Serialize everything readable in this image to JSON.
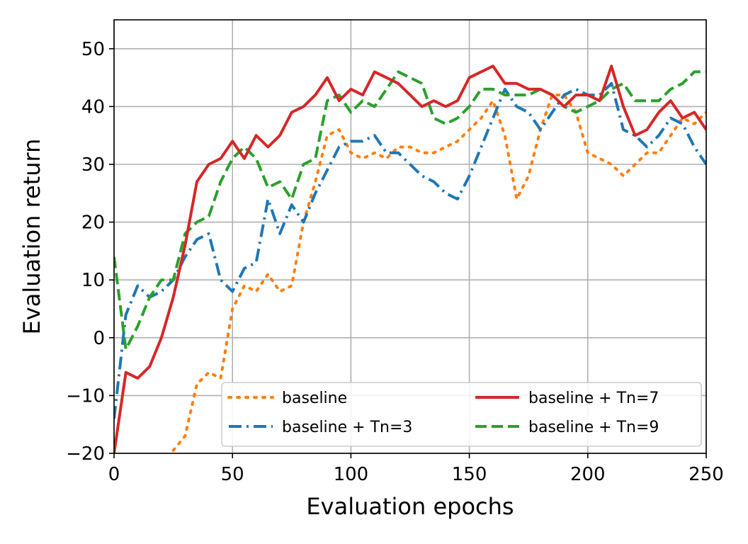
{
  "chart_data": {
    "type": "line",
    "title": "",
    "xlabel": "Evaluation epochs",
    "ylabel": "Evaluation return",
    "xlim": [
      0,
      250
    ],
    "ylim": [
      -20,
      55
    ],
    "grid": true,
    "legend_position": "lower-right",
    "xticks": [
      0,
      50,
      100,
      150,
      200,
      250
    ],
    "xtick_labels": [
      "0",
      "50",
      "100",
      "150",
      "200",
      "250"
    ],
    "yticks": [
      -20,
      -10,
      0,
      10,
      20,
      30,
      40,
      50
    ],
    "ytick_labels": [
      "−20",
      "−10",
      "0",
      "10",
      "20",
      "30",
      "40",
      "50"
    ],
    "x": [
      0,
      5,
      10,
      15,
      20,
      25,
      30,
      35,
      40,
      45,
      50,
      55,
      60,
      65,
      70,
      75,
      80,
      85,
      90,
      95,
      100,
      105,
      110,
      115,
      120,
      125,
      130,
      135,
      140,
      145,
      150,
      155,
      160,
      165,
      170,
      175,
      180,
      185,
      190,
      195,
      200,
      205,
      210,
      215,
      220,
      225,
      230,
      235,
      240,
      245,
      250
    ],
    "series": [
      {
        "name": "baseline",
        "color": "#ff7f0e",
        "style": "dotted",
        "values": [
          null,
          null,
          null,
          null,
          null,
          -19.5,
          -17,
          -8,
          -6,
          -7,
          5,
          9,
          8,
          11,
          8,
          9,
          20,
          27,
          35,
          36,
          32,
          31,
          32,
          31,
          33,
          33,
          32,
          32,
          33,
          34,
          36,
          38,
          41,
          35,
          24,
          28,
          36,
          42,
          42,
          39,
          32,
          31,
          30,
          28,
          30,
          32,
          32,
          35,
          38,
          37,
          39
        ]
      },
      {
        "name": "baseline + Tn=3",
        "color": "#1f77b4",
        "style": "dashdot",
        "values": [
          -14,
          4,
          9,
          7,
          8,
          10,
          14,
          17,
          18,
          10,
          8,
          12,
          13,
          24,
          18,
          23,
          20,
          25,
          29,
          33,
          34,
          34,
          35,
          32,
          32,
          30,
          28,
          27,
          25,
          24,
          28,
          33,
          38,
          43,
          40,
          39,
          36,
          39,
          42,
          43,
          42,
          42,
          44,
          36,
          35,
          33,
          35,
          38,
          37,
          33,
          30
        ]
      },
      {
        "name": "baseline + Tn=7",
        "color": "#d62728",
        "style": "solid",
        "values": [
          -20,
          -6,
          -7,
          -5,
          0,
          7,
          16,
          27,
          30,
          31,
          34,
          31,
          35,
          33,
          35,
          39,
          40,
          42,
          45,
          41,
          43,
          42,
          46,
          45,
          44,
          42,
          40,
          41,
          40,
          41,
          45,
          46,
          47,
          44,
          44,
          43,
          43,
          42,
          40,
          42,
          42,
          41,
          47,
          40,
          35,
          36,
          39,
          41,
          38,
          39,
          36
        ]
      },
      {
        "name": "baseline + Tn=9",
        "color": "#2ca02c",
        "style": "dashed",
        "values": [
          14,
          -2,
          2,
          7,
          10,
          10,
          18,
          20,
          21,
          27,
          31,
          33,
          31,
          26,
          27,
          24,
          30,
          31,
          41,
          42,
          39,
          41,
          40,
          43,
          46,
          45,
          44,
          38,
          37,
          38,
          40,
          43,
          43,
          42,
          42,
          42,
          43,
          42,
          40,
          39,
          40,
          41,
          43,
          44,
          41,
          41,
          41,
          43,
          44,
          46,
          46
        ]
      }
    ]
  }
}
